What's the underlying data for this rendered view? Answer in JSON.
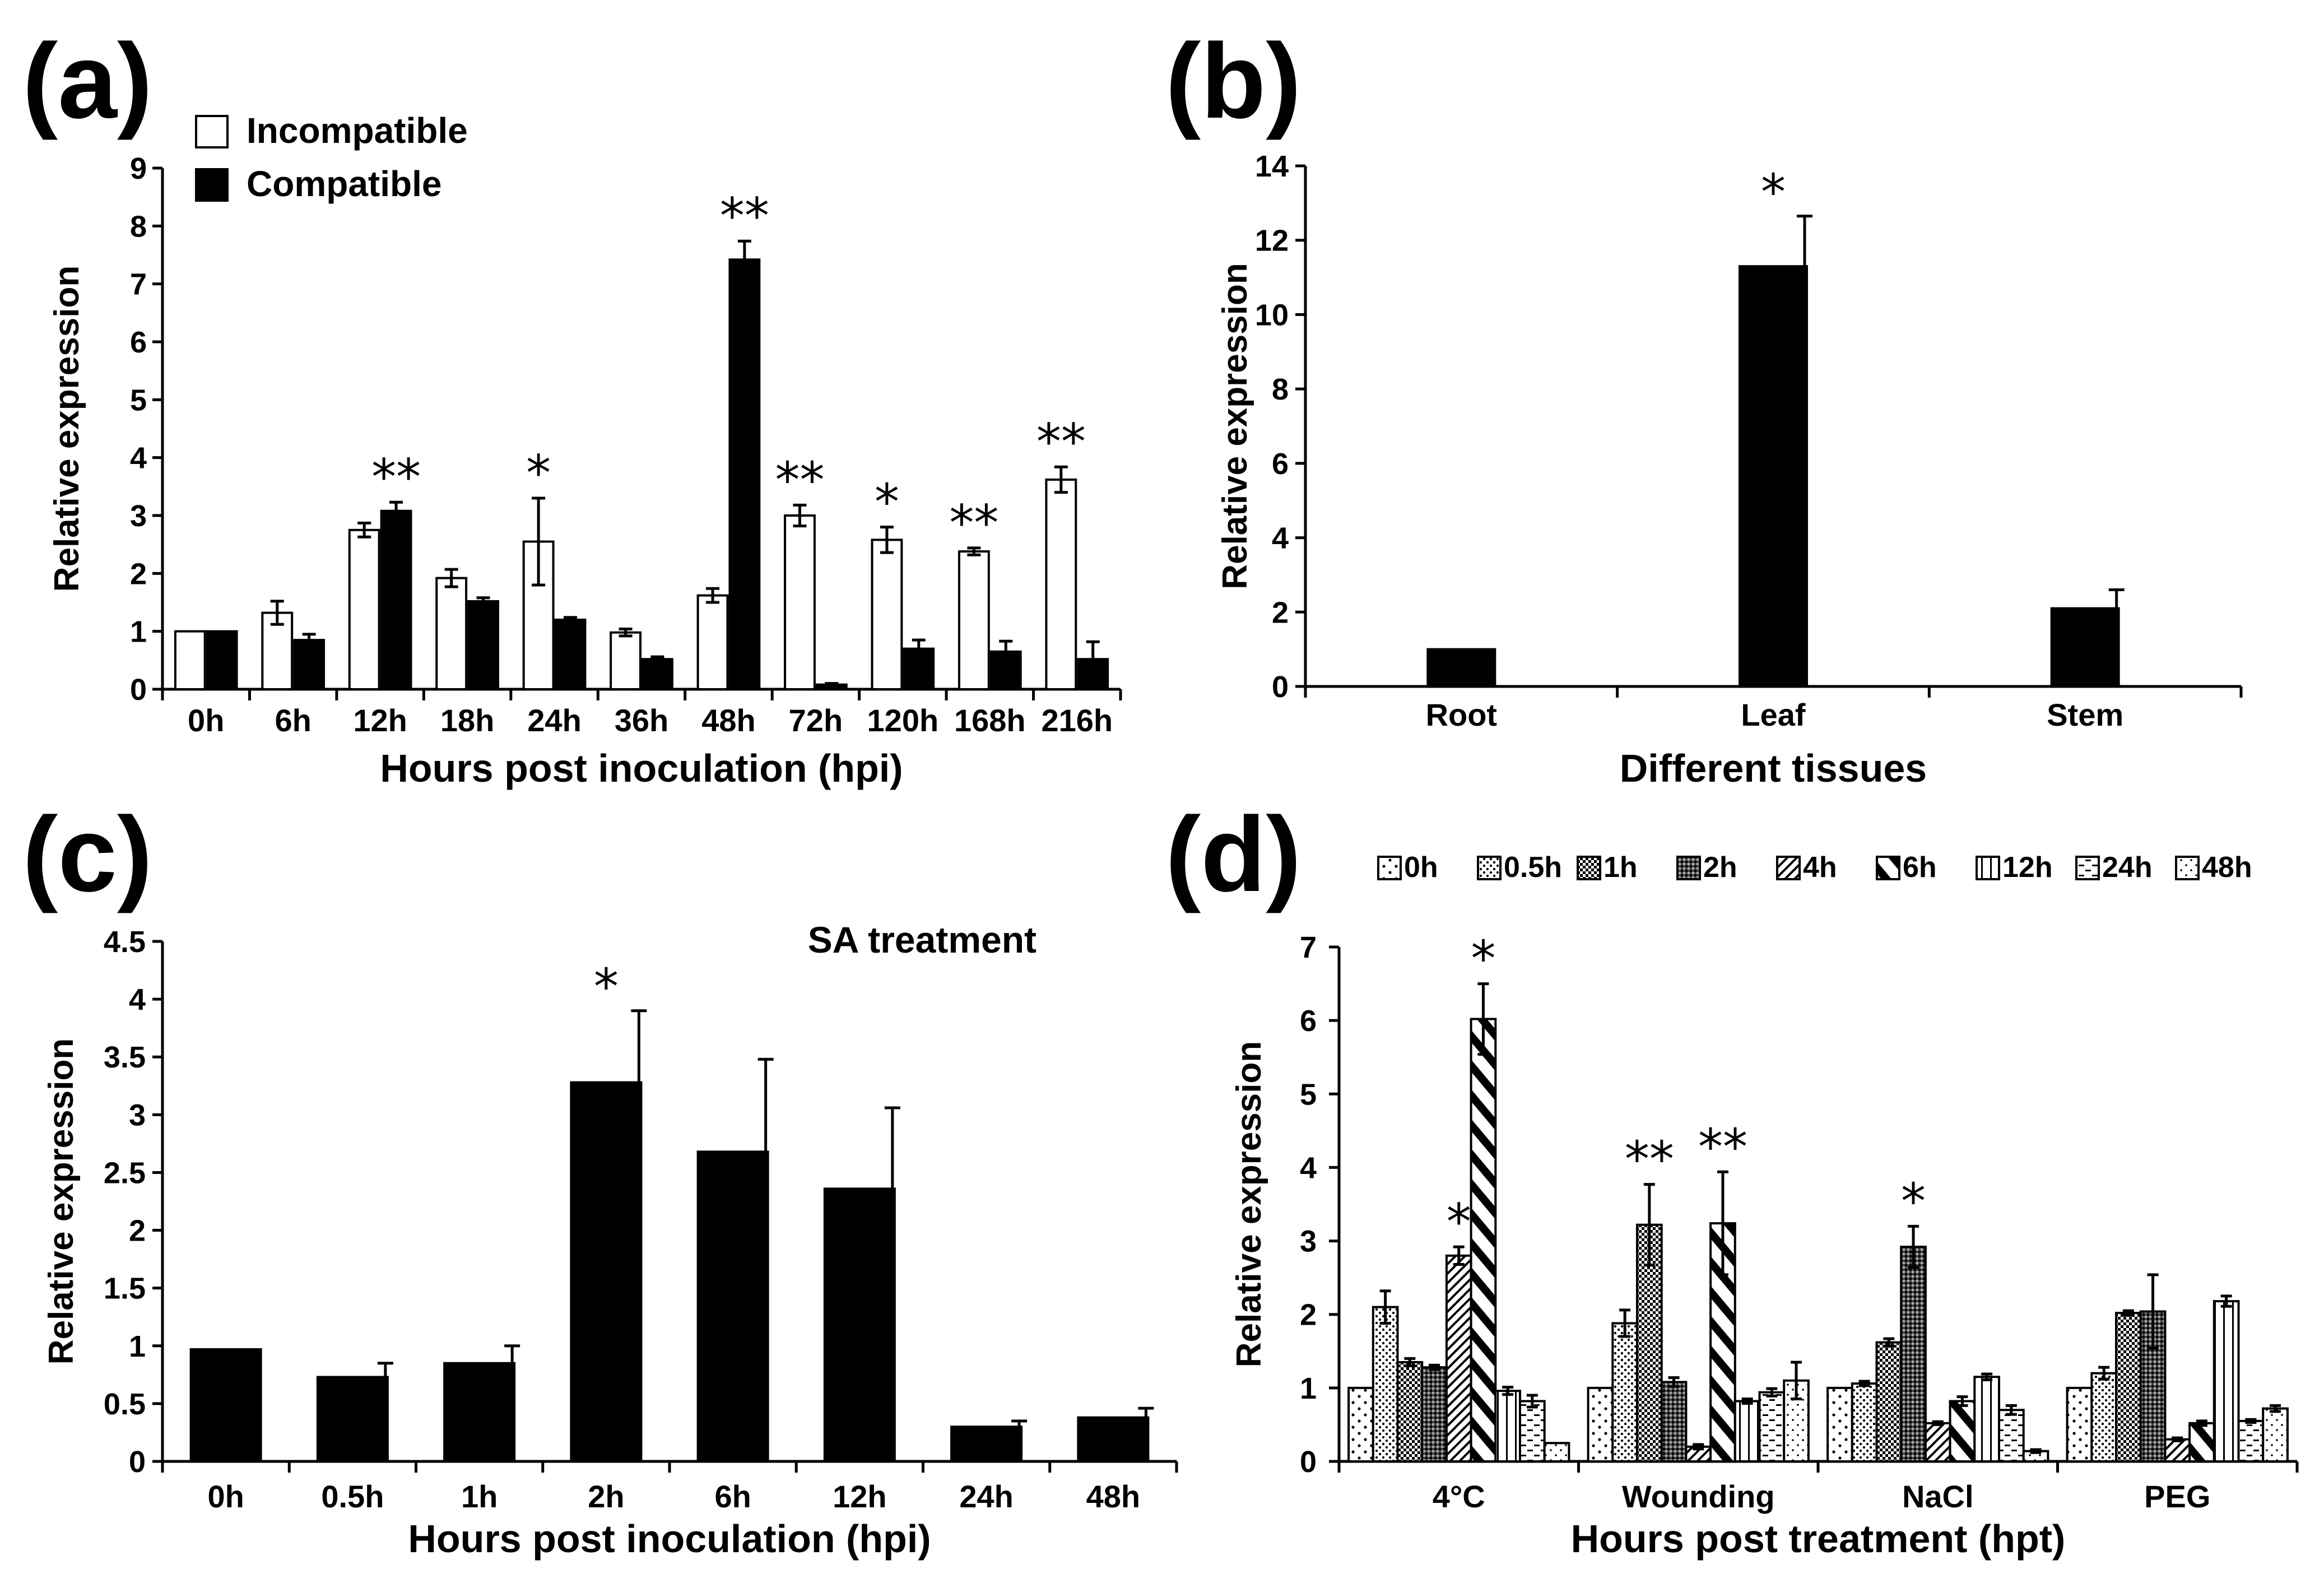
{
  "chart_data": [
    {
      "panel": "(a)",
      "type": "bar",
      "title": "",
      "xlabel": "Hours post inoculation (hpi)",
      "ylabel": "Relative expression",
      "ylim": [
        0,
        9
      ],
      "yticks": [
        "0",
        "1",
        "2",
        "3",
        "4",
        "5",
        "6",
        "7",
        "8",
        "9"
      ],
      "categories": [
        "0h",
        "6h",
        "12h",
        "18h",
        "24h",
        "36h",
        "48h",
        "72h",
        "120h",
        "168h",
        "216h"
      ],
      "legend_position": "top-left",
      "series": [
        {
          "name": "Incompatible",
          "color": "#ffffff",
          "pattern": "none",
          "values": [
            1.0,
            1.32,
            2.75,
            1.92,
            2.55,
            0.98,
            1.62,
            3.0,
            2.58,
            2.38,
            3.62
          ],
          "errors": [
            0,
            0.2,
            0.12,
            0.15,
            0.75,
            0.06,
            0.12,
            0.18,
            0.22,
            0.06,
            0.22
          ]
        },
        {
          "name": "Compatible",
          "color": "#000000",
          "pattern": "none",
          "values": [
            1.0,
            0.85,
            3.08,
            1.52,
            1.2,
            0.52,
            7.42,
            0.08,
            0.7,
            0.65,
            0.52
          ],
          "errors": [
            0,
            0.1,
            0.15,
            0.06,
            0.04,
            0.04,
            0.32,
            0.02,
            0.15,
            0.18,
            0.3
          ]
        }
      ],
      "annotations": [
        {
          "text": "**",
          "category": "12h",
          "series": "Compatible"
        },
        {
          "text": "*",
          "category": "24h",
          "series": "Incompatible"
        },
        {
          "text": "**",
          "category": "48h",
          "series": "Compatible"
        },
        {
          "text": "**",
          "category": "72h",
          "series": "Incompatible"
        },
        {
          "text": "*",
          "category": "120h",
          "series": "Incompatible"
        },
        {
          "text": "**",
          "category": "168h",
          "series": "Incompatible"
        },
        {
          "text": "**",
          "category": "216h",
          "series": "Incompatible"
        }
      ]
    },
    {
      "panel": "(b)",
      "type": "bar",
      "title": "",
      "xlabel": "Different tissues",
      "ylabel": "Relative expression",
      "ylim": [
        0,
        14
      ],
      "yticks": [
        "0",
        "2",
        "4",
        "6",
        "8",
        "10",
        "12",
        "14"
      ],
      "categories": [
        "Root",
        "Leaf",
        "Stem"
      ],
      "series": [
        {
          "name": "Expression",
          "color": "#000000",
          "pattern": "none",
          "values": [
            1.0,
            11.3,
            2.1
          ],
          "errors": [
            0,
            1.35,
            0.5
          ]
        }
      ],
      "annotations": [
        {
          "text": "*",
          "category": "Leaf",
          "series": "Expression"
        }
      ]
    },
    {
      "panel": "(c)",
      "type": "bar",
      "title": "SA treatment",
      "xlabel": "Hours post inoculation (hpi)",
      "ylabel": "Relative expression",
      "ylim": [
        0,
        4.5
      ],
      "yticks": [
        "0",
        "0.5",
        "1",
        "1.5",
        "2",
        "2.5",
        "3",
        "3.5",
        "4",
        "4.5"
      ],
      "categories": [
        "0h",
        "0.5h",
        "1h",
        "2h",
        "6h",
        "12h",
        "24h",
        "48h"
      ],
      "series": [
        {
          "name": "SA",
          "color": "#000000",
          "pattern": "none",
          "values": [
            0.97,
            0.73,
            0.85,
            3.28,
            2.68,
            2.36,
            0.3,
            0.38
          ],
          "errors": [
            0,
            0.12,
            0.15,
            0.62,
            0.8,
            0.7,
            0.05,
            0.08
          ]
        }
      ],
      "annotations": [
        {
          "text": "*",
          "category": "2h",
          "series": "SA"
        }
      ]
    },
    {
      "panel": "(d)",
      "type": "bar",
      "title": "",
      "xlabel": "Hours post treatment (hpt)",
      "ylabel": "Relative expression",
      "ylim": [
        0,
        7
      ],
      "yticks": [
        "0",
        "1",
        "2",
        "3",
        "4",
        "5",
        "6",
        "7"
      ],
      "categories": [
        "4°C",
        "Wounding",
        "NaCl",
        "PEG"
      ],
      "legend_position": "top",
      "series": [
        {
          "name": "0h",
          "color": "#ffffff",
          "pattern": "dots-sparse",
          "values": [
            1.0,
            1.0,
            1.0,
            1.0
          ],
          "errors": [
            0,
            0,
            0,
            0
          ]
        },
        {
          "name": "0.5h",
          "color": "#ffffff",
          "pattern": "dots-dense",
          "values": [
            2.1,
            1.88,
            1.06,
            1.2
          ],
          "errors": [
            0.22,
            0.18,
            0.03,
            0.08
          ]
        },
        {
          "name": "1h",
          "color": "#cccccc",
          "pattern": "checker",
          "values": [
            1.35,
            3.22,
            1.62,
            2.02
          ],
          "errors": [
            0.05,
            0.55,
            0.05,
            0.03
          ]
        },
        {
          "name": "2h",
          "color": "#888888",
          "pattern": "checker-dark",
          "values": [
            1.28,
            1.08,
            2.92,
            2.04
          ],
          "errors": [
            0.03,
            0.06,
            0.28,
            0.5
          ]
        },
        {
          "name": "4h",
          "color": "#ffffff",
          "pattern": "diag-fine",
          "values": [
            2.8,
            0.2,
            0.52,
            0.3
          ],
          "errors": [
            0.12,
            0.03,
            0.02,
            0.02
          ]
        },
        {
          "name": "6h",
          "color": "#ffffff",
          "pattern": "diag-bold",
          "values": [
            6.02,
            3.24,
            0.82,
            0.52
          ],
          "errors": [
            0.48,
            0.7,
            0.06,
            0.03
          ]
        },
        {
          "name": "12h",
          "color": "#ffffff",
          "pattern": "vertical",
          "values": [
            0.96,
            0.82,
            1.15,
            2.18
          ],
          "errors": [
            0.05,
            0.03,
            0.04,
            0.07
          ]
        },
        {
          "name": "24h",
          "color": "#ffffff",
          "pattern": "dashes",
          "values": [
            0.82,
            0.94,
            0.7,
            0.55
          ],
          "errors": [
            0.08,
            0.05,
            0.06,
            0.02
          ]
        },
        {
          "name": "48h",
          "color": "#ffffff",
          "pattern": "dots-light",
          "values": [
            0.25,
            1.1,
            0.14,
            0.72
          ],
          "errors": [
            0,
            0.25,
            0.02,
            0.04
          ]
        }
      ],
      "annotations": [
        {
          "text": "*",
          "category": "4°C",
          "series": "4h"
        },
        {
          "text": "*",
          "category": "4°C",
          "series": "6h"
        },
        {
          "text": "**",
          "category": "Wounding",
          "series": "1h"
        },
        {
          "text": "**",
          "category": "Wounding",
          "series": "6h"
        },
        {
          "text": "*",
          "category": "NaCl",
          "series": "2h"
        }
      ]
    }
  ]
}
